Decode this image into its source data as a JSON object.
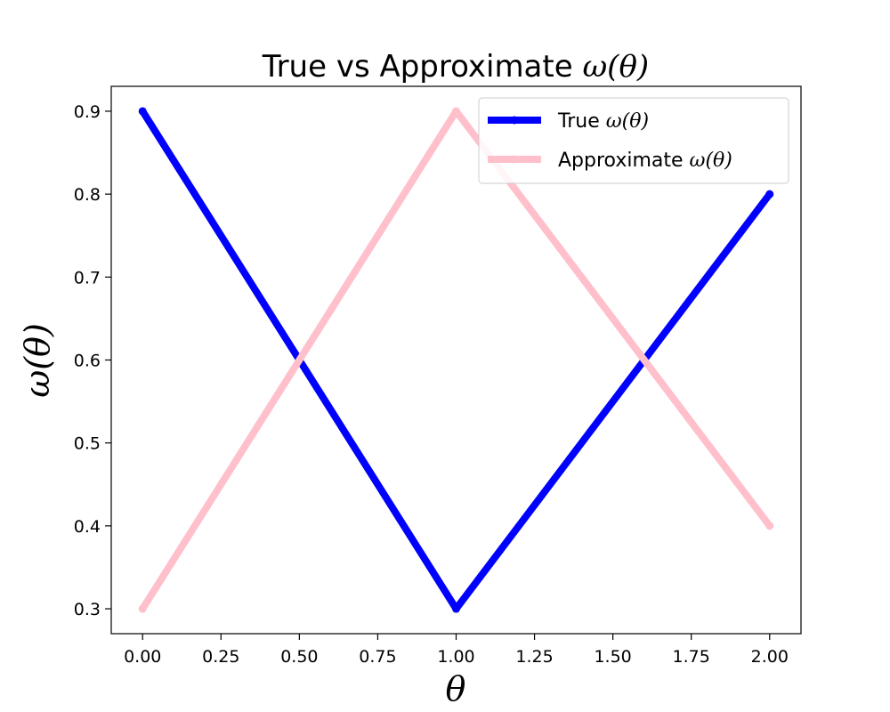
{
  "chart_data": {
    "type": "line",
    "title_prefix": "True vs Approximate ",
    "title_math": "ω(θ)",
    "xlabel": "θ",
    "ylabel": "ω(θ)",
    "xlim": [
      -0.1,
      2.1
    ],
    "ylim": [
      0.27,
      0.93
    ],
    "x_ticks": [
      0.0,
      0.25,
      0.5,
      0.75,
      1.0,
      1.25,
      1.5,
      1.75,
      2.0
    ],
    "x_tick_labels": [
      "0.00",
      "0.25",
      "0.50",
      "0.75",
      "1.00",
      "1.25",
      "1.50",
      "1.75",
      "2.00"
    ],
    "y_ticks": [
      0.3,
      0.4,
      0.5,
      0.6,
      0.7,
      0.8,
      0.9
    ],
    "y_tick_labels": [
      "0.3",
      "0.4",
      "0.5",
      "0.6",
      "0.7",
      "0.8",
      "0.9"
    ],
    "grid": false,
    "legend_placement": "top-right",
    "series": [
      {
        "name_prefix": "True ",
        "name_math": "ω(θ)",
        "color": "#0000ff",
        "x": [
          0.0,
          1.0,
          2.0
        ],
        "y": [
          0.9,
          0.3,
          0.8
        ]
      },
      {
        "name_prefix": "Approximate ",
        "name_math": "ω(θ)",
        "color": "#ffc0cb",
        "x": [
          0.0,
          1.0,
          2.0
        ],
        "y": [
          0.3,
          0.9,
          0.4
        ]
      }
    ]
  }
}
